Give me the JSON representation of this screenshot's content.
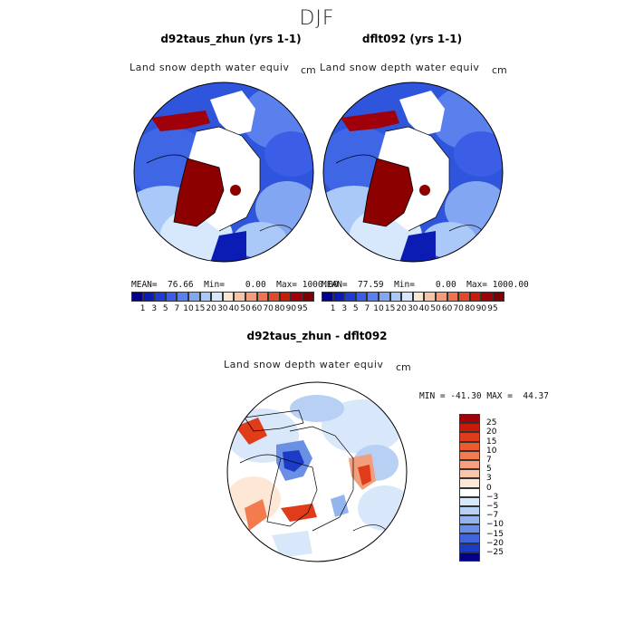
{
  "figure": {
    "title": "DJF",
    "panels": [
      {
        "title": "d92taus_zhun (yrs 1-1)",
        "field": "Land snow depth water equiv",
        "unit": "cm",
        "stats": "MEAN=  76.66  Min=    0.00  Max= 1000.00"
      },
      {
        "title": "dflt092 (yrs 1-1)",
        "field": "Land snow depth water equiv",
        "unit": "cm",
        "stats": "MEAN=  77.59  Min=    0.00  Max= 1000.00"
      },
      {
        "title": "d92taus_zhun - dflt092",
        "field": "Land snow depth water equiv",
        "unit": "cm",
        "stats": "MIN = -41.30 MAX =  44.37"
      }
    ],
    "colorbar_abs": {
      "labels": [
        "1",
        "3",
        "5",
        "7",
        "10",
        "15",
        "20",
        "30",
        "40",
        "50",
        "60",
        "70",
        "80",
        "90",
        "95"
      ],
      "colors": [
        "#00008c",
        "#0a1cb4",
        "#1e3cd2",
        "#3c5ee6",
        "#5a80ee",
        "#82a6f2",
        "#aac8f8",
        "#d8e8fc",
        "#fbe6d2",
        "#f8c4a6",
        "#f29e7c",
        "#ec7450",
        "#e04a28",
        "#c41e0a",
        "#a0000a",
        "#7e0000"
      ]
    },
    "colorbar_diff": {
      "labels": [
        "25",
        "20",
        "15",
        "10",
        "7",
        "5",
        "3",
        "0",
        "−3",
        "−5",
        "−7",
        "−10",
        "−15",
        "−20",
        "−25"
      ],
      "colors": [
        "#a0000a",
        "#c81a0a",
        "#e03c1a",
        "#ee5a2c",
        "#f27c4e",
        "#f6a080",
        "#f8c6aa",
        "#fde8d8",
        "#ffffff",
        "#d8e8fa",
        "#b8d0f4",
        "#94b4ee",
        "#6a90e6",
        "#4066dc",
        "#1c3cc8",
        "#00008c"
      ]
    }
  }
}
